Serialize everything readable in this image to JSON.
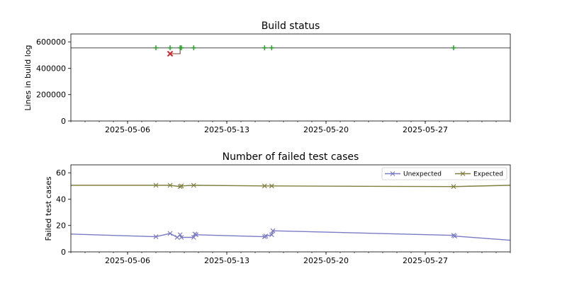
{
  "chart_data": [
    {
      "type": "line",
      "title": "Build status",
      "xlabel": "",
      "ylabel": "Lines in build log",
      "xlim": [
        "2025-05-02",
        "2025-06-02"
      ],
      "ylim": [
        0,
        660000
      ],
      "x_ticks": [
        "2025-05-06",
        "2025-05-13",
        "2025-05-20",
        "2025-05-27"
      ],
      "y_ticks": [
        0,
        200000,
        400000,
        600000
      ],
      "y_tick_labels": [
        "0",
        "200000",
        "400000",
        "600000"
      ],
      "reference_line": {
        "y": 555000,
        "color": "#808080"
      },
      "series": [
        {
          "status": "pass",
          "marker": "+",
          "color": "#2ca02c",
          "points": [
            {
              "x": "2025-05-08",
              "y": 555000
            },
            {
              "x": "2025-05-09",
              "y": 555000
            },
            {
              "x": "2025-05-09T17:00",
              "y": 555000
            },
            {
              "x": "2025-05-09T19:00",
              "y": 555000
            },
            {
              "x": "2025-05-10T16:00",
              "y": 555000
            },
            {
              "x": "2025-05-15T16:00",
              "y": 555000
            },
            {
              "x": "2025-05-16T04:00",
              "y": 555000
            },
            {
              "x": "2025-05-29",
              "y": 555000
            }
          ]
        },
        {
          "status": "fail",
          "marker": "x",
          "color": "#d62728",
          "points": [
            {
              "x": "2025-05-09",
              "y": 510000
            }
          ]
        }
      ],
      "connector_color": "#8c564b"
    },
    {
      "type": "line",
      "title": "Number of failed test cases",
      "xlabel": "",
      "ylabel": "Failed test cases",
      "xlim": [
        "2025-05-02",
        "2025-06-02"
      ],
      "ylim": [
        0,
        66
      ],
      "x_ticks": [
        "2025-05-06",
        "2025-05-13",
        "2025-05-20",
        "2025-05-27"
      ],
      "y_ticks": [
        0,
        20,
        40,
        60
      ],
      "y_tick_labels": [
        "0",
        "20",
        "40",
        "60"
      ],
      "legend": "upper-right",
      "series": [
        {
          "name": "Unexpected",
          "color": "#7b7bc4",
          "marker": "x",
          "points": [
            {
              "x": "2025-05-02",
              "y": 13.5,
              "marker": false
            },
            {
              "x": "2025-05-08",
              "y": 11.5
            },
            {
              "x": "2025-05-09",
              "y": 14
            },
            {
              "x": "2025-05-09T12:00",
              "y": 11
            },
            {
              "x": "2025-05-09T17:00",
              "y": 13
            },
            {
              "x": "2025-05-09T19:00",
              "y": 11
            },
            {
              "x": "2025-05-10T16:00",
              "y": 11
            },
            {
              "x": "2025-05-10T18:00",
              "y": 13.5
            },
            {
              "x": "2025-05-10T20:00",
              "y": 13
            },
            {
              "x": "2025-05-15T16:00",
              "y": 11.5
            },
            {
              "x": "2025-05-15T18:00",
              "y": 12
            },
            {
              "x": "2025-05-16T04:00",
              "y": 13
            },
            {
              "x": "2025-05-16T06:00",
              "y": 16
            },
            {
              "x": "2025-05-29",
              "y": 12.5
            },
            {
              "x": "2025-05-29T02:00",
              "y": 12
            },
            {
              "x": "2025-06-02",
              "y": 8.8,
              "marker": false
            }
          ]
        },
        {
          "name": "Expected",
          "color": "#7f7f3f",
          "marker": "x",
          "points": [
            {
              "x": "2025-05-02",
              "y": 50.5,
              "marker": false
            },
            {
              "x": "2025-05-08",
              "y": 50.5
            },
            {
              "x": "2025-05-09",
              "y": 50.5
            },
            {
              "x": "2025-05-09T17:00",
              "y": 49.5
            },
            {
              "x": "2025-05-09T19:00",
              "y": 50
            },
            {
              "x": "2025-05-10T16:00",
              "y": 50.5
            },
            {
              "x": "2025-05-15T16:00",
              "y": 50
            },
            {
              "x": "2025-05-16T04:00",
              "y": 50
            },
            {
              "x": "2025-05-29",
              "y": 49.5
            },
            {
              "x": "2025-06-02",
              "y": 50.5,
              "marker": false
            }
          ]
        }
      ]
    }
  ]
}
